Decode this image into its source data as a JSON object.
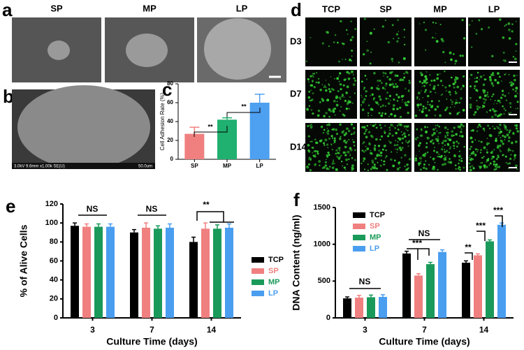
{
  "panel_a": {
    "letter": "a",
    "labels": [
      "SP",
      "MP",
      "LP"
    ]
  },
  "panel_b": {
    "letter": "b",
    "sem_info": "3.0kV 9.6mm x1.00k SE(U)",
    "scale": "50.0um"
  },
  "panel_d": {
    "letter": "d",
    "columns": [
      "TCP",
      "SP",
      "MP",
      "LP"
    ],
    "rows": [
      "D3",
      "D7",
      "D14"
    ]
  },
  "chart_data": [
    {
      "type": "bar",
      "panel": "c",
      "y_label": "Cell Adhesion Rate (%)",
      "categories": [
        "SP",
        "MP",
        "LP"
      ],
      "values": [
        27,
        42,
        60
      ],
      "errors": [
        7,
        2,
        9
      ],
      "colors": [
        "#f08080",
        "#20b070",
        "#4ea0f0"
      ],
      "ylim": [
        0,
        80
      ],
      "yticks": [
        0,
        20,
        40,
        60,
        80
      ],
      "annotations": [
        "**",
        "**"
      ]
    },
    {
      "type": "bar",
      "panel": "e",
      "x_label": "Culture Time (days)",
      "y_label": "% of Alive Cells",
      "categories": [
        "3",
        "7",
        "14"
      ],
      "series": [
        {
          "name": "TCP",
          "color": "#000000",
          "values": [
            97,
            90,
            80
          ],
          "errors": [
            3,
            3,
            5
          ]
        },
        {
          "name": "SP",
          "color": "#f08080",
          "values": [
            96,
            95,
            94
          ],
          "errors": [
            3,
            5,
            6
          ]
        },
        {
          "name": "MP",
          "color": "#1a9a5a",
          "values": [
            96,
            94,
            94
          ],
          "errors": [
            3,
            3,
            4
          ]
        },
        {
          "name": "LP",
          "color": "#4a9ef0",
          "values": [
            96,
            95,
            95
          ],
          "errors": [
            3,
            4,
            4
          ]
        }
      ],
      "ylim": [
        0,
        120
      ],
      "yticks": [
        0,
        20,
        40,
        60,
        80,
        100,
        120
      ],
      "legend": "right",
      "annotations": [
        "NS",
        "NS",
        "**"
      ]
    },
    {
      "type": "bar",
      "panel": "f",
      "x_label": "Culture Time (days)",
      "y_label": "DNA Content (ng/ml)",
      "categories": [
        "3",
        "7",
        "14"
      ],
      "series": [
        {
          "name": "TCP",
          "color": "#000000",
          "values": [
            265,
            875,
            750
          ],
          "errors": [
            20,
            30,
            25
          ]
        },
        {
          "name": "SP",
          "color": "#f08080",
          "values": [
            275,
            575,
            850
          ],
          "errors": [
            30,
            25,
            20
          ]
        },
        {
          "name": "MP",
          "color": "#1a9a5a",
          "values": [
            280,
            730,
            1040
          ],
          "errors": [
            30,
            25,
            20
          ]
        },
        {
          "name": "LP",
          "color": "#4a9ef0",
          "values": [
            285,
            895,
            1265
          ],
          "errors": [
            30,
            30,
            25
          ]
        }
      ],
      "ylim": [
        0,
        1500
      ],
      "yticks": [
        0,
        500,
        1000,
        1500
      ],
      "legend": "upper-left",
      "annotations": [
        "NS",
        "NS",
        "***",
        "**",
        "***",
        "***"
      ]
    }
  ]
}
